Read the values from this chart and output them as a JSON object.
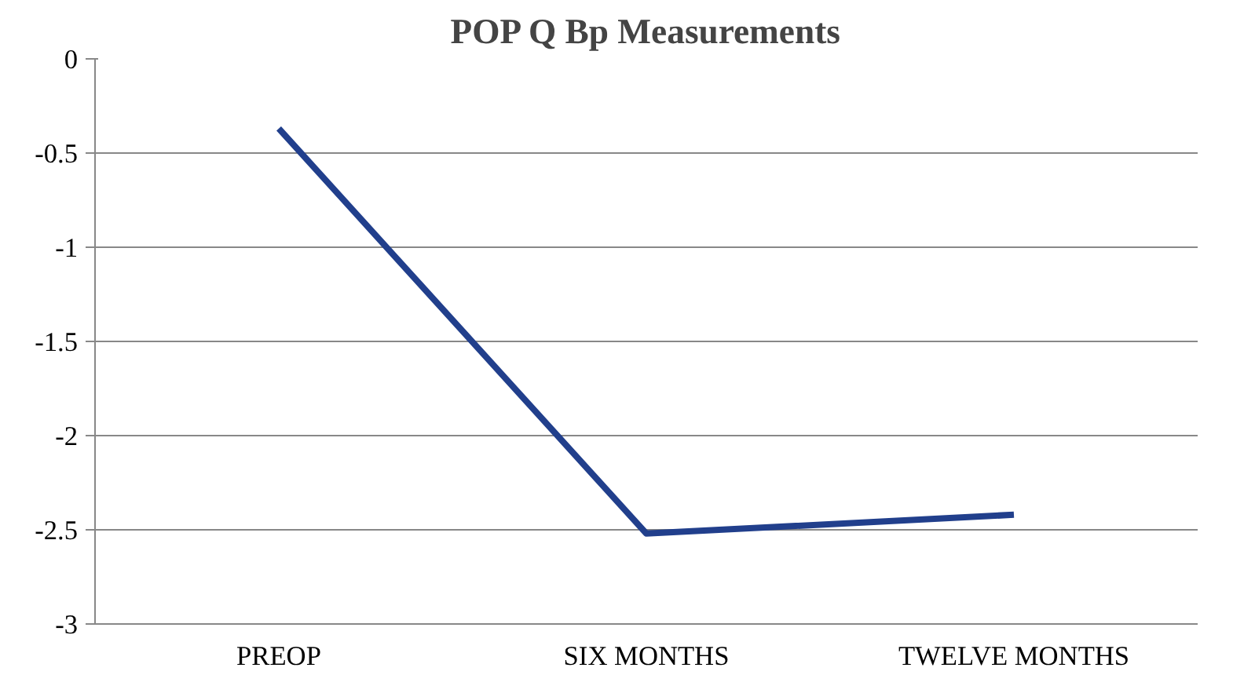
{
  "chart_data": {
    "type": "line",
    "title": "POP Q Bp Measurements",
    "categories": [
      "PREOP",
      "SIX MONTHS",
      "TWELVE MONTHS"
    ],
    "series": [
      {
        "color": "#213f8c",
        "values": [
          -0.37,
          -2.52,
          -2.42
        ]
      }
    ],
    "ylim": [
      -3,
      0
    ],
    "yticks": [
      -3,
      -2.5,
      -2,
      -1.5,
      -1,
      -0.5,
      0
    ],
    "grid": "y",
    "marker": "none",
    "line_style": "solid"
  }
}
